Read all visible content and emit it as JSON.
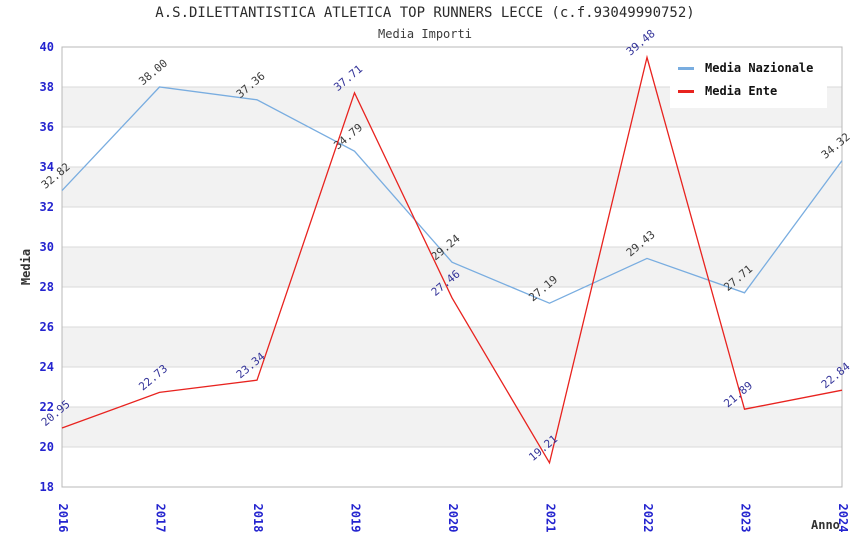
{
  "header": {
    "title": "A.S.DILETTANTISTICA ATLETICA TOP RUNNERS LECCE (c.f.93049990752)",
    "subtitle": "Media Importi"
  },
  "colors": {
    "background": "#ffffff",
    "band": "#f2f2f2",
    "grid": "#d9d9d9",
    "border": "#b8b8b8",
    "tick_label": "#2424cf",
    "axis_title": "#333333",
    "legend_text": "#111111"
  },
  "chart_data": {
    "type": "line",
    "title": "A.S.DILETTANTISTICA ATLETICA TOP RUNNERS LECCE (c.f.93049990752)",
    "subtitle": "Media Importi",
    "xlabel": "Anno",
    "ylabel": "Media",
    "x": [
      "2016",
      "2017",
      "2018",
      "2019",
      "2020",
      "2021",
      "2022",
      "2023",
      "2024"
    ],
    "ylim": [
      18,
      40
    ],
    "ytick_step": 2,
    "grid": "horizontal-bands-alternating",
    "legend_position": "top-right",
    "series": [
      {
        "name": "Media Nazionale",
        "color": "#79ade0",
        "label_color": "#3a3a3a",
        "values": [
          32.82,
          38.0,
          37.36,
          34.79,
          29.24,
          27.19,
          29.43,
          27.71,
          34.32
        ]
      },
      {
        "name": "Media Ente",
        "color": "#e8231f",
        "label_color": "#333399",
        "values": [
          20.95,
          22.73,
          23.34,
          37.71,
          27.46,
          19.21,
          39.48,
          21.89,
          22.84
        ]
      }
    ]
  }
}
